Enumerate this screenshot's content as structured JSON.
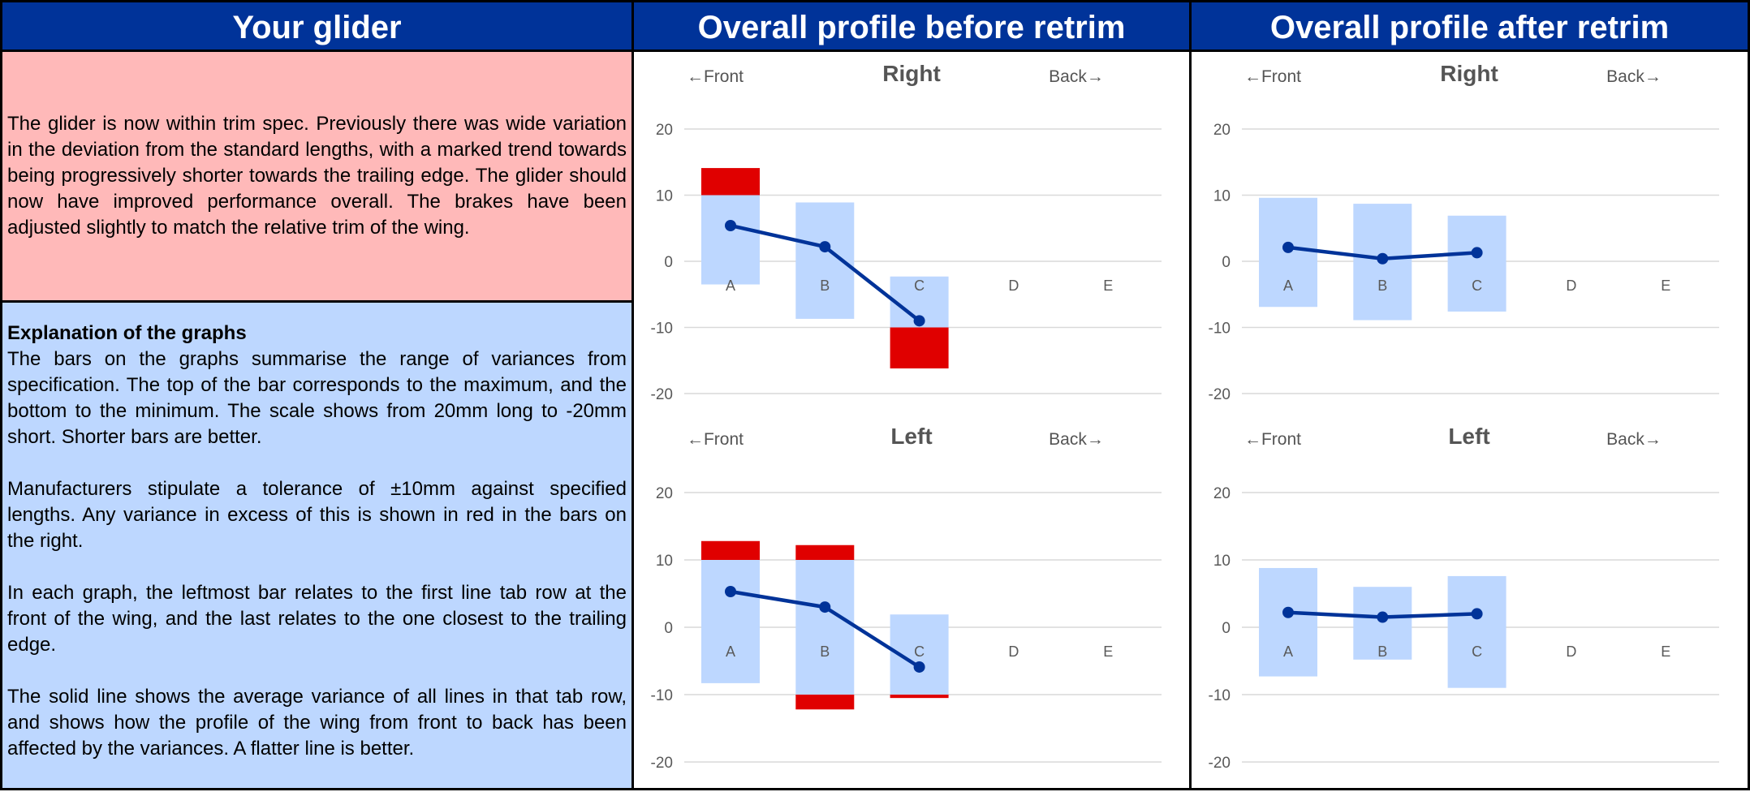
{
  "headers": {
    "glider": "Your glider",
    "before": "Overall profile before retrim",
    "after": "Overall profile after retrim"
  },
  "summary": "The glider is now within trim spec.  Previously there was wide variation in the deviation from the standard lengths, with a marked trend towards being progressively shorter towards the trailing edge.  The glider should now have improved performance overall.  The brakes have been adjusted slightly to match the relative trim of the wing.",
  "explanation": {
    "title": "Explanation of the graphs",
    "paragraphs": [
      "The bars on the graphs summarise the range of variances from specification. The top of the bar corresponds to the maximum, and the bottom to the minimum. The scale shows from 20mm long to -20mm short. Shorter bars are better.",
      "Manufacturers stipulate a tolerance of ±10mm against specified lengths. Any variance in excess of this is shown in red in the bars on the right.",
      "In each graph, the leftmost bar relates to the first line tab row at the front of the wing, and the last relates to the one closest to the trailing edge.",
      "The solid line shows the average variance of all lines in that tab row, and shows how the profile of the wing from front to back has been affected by the variances. A flatter line is better."
    ]
  },
  "colors": {
    "header_bg": "#003399",
    "bar_in_tolerance": "#bdd7ff",
    "bar_out_of_tolerance": "#e00000",
    "average_line": "#003399",
    "summary_bg": "#ffb9b9",
    "explanation_bg": "#bdd7ff"
  },
  "chart_data": [
    {
      "id": "before-right",
      "type": "bar",
      "title": "Right",
      "front_label": "←Front",
      "back_label": "Back→",
      "categories": [
        "A",
        "B",
        "C",
        "D",
        "E"
      ],
      "ylim": [
        -20,
        20
      ],
      "yticks": [
        20,
        10,
        0,
        -10,
        -20
      ],
      "tolerance": 10,
      "series": [
        {
          "type": "range-bar",
          "min": [
            -3.5,
            -8.7,
            -16.2,
            null,
            null
          ],
          "max": [
            14.1,
            8.9,
            -2.3,
            null,
            null
          ]
        },
        {
          "type": "line",
          "values": [
            5.4,
            2.2,
            -9.0,
            null,
            null
          ]
        }
      ]
    },
    {
      "id": "before-left",
      "type": "bar",
      "title": "Left",
      "front_label": "←Front",
      "back_label": "Back→",
      "categories": [
        "A",
        "B",
        "C",
        "D",
        "E"
      ],
      "ylim": [
        -20,
        20
      ],
      "yticks": [
        20,
        10,
        0,
        -10,
        -20
      ],
      "tolerance": 10,
      "series": [
        {
          "type": "range-bar",
          "min": [
            -8.3,
            -12.2,
            -10.5,
            null,
            null
          ],
          "max": [
            12.8,
            12.2,
            1.9,
            null,
            null
          ]
        },
        {
          "type": "line",
          "values": [
            5.3,
            3.0,
            -5.9,
            null,
            null
          ]
        }
      ]
    },
    {
      "id": "after-right",
      "type": "bar",
      "title": "Right",
      "front_label": "←Front",
      "back_label": "Back→",
      "categories": [
        "A",
        "B",
        "C",
        "D",
        "E"
      ],
      "ylim": [
        -20,
        20
      ],
      "yticks": [
        20,
        10,
        0,
        -10,
        -20
      ],
      "tolerance": 10,
      "series": [
        {
          "type": "range-bar",
          "min": [
            -6.9,
            -8.9,
            -7.6,
            null,
            null
          ],
          "max": [
            9.6,
            8.7,
            6.9,
            null,
            null
          ]
        },
        {
          "type": "line",
          "values": [
            2.1,
            0.4,
            1.3,
            null,
            null
          ]
        }
      ]
    },
    {
      "id": "after-left",
      "type": "bar",
      "title": "Left",
      "front_label": "←Front",
      "back_label": "Back→",
      "categories": [
        "A",
        "B",
        "C",
        "D",
        "E"
      ],
      "ylim": [
        -20,
        20
      ],
      "yticks": [
        20,
        10,
        0,
        -10,
        -20
      ],
      "tolerance": 10,
      "series": [
        {
          "type": "range-bar",
          "min": [
            -7.3,
            -4.8,
            -9.0,
            null,
            null
          ],
          "max": [
            8.8,
            6.0,
            7.6,
            null,
            null
          ]
        },
        {
          "type": "line",
          "values": [
            2.2,
            1.5,
            2.0,
            null,
            null
          ]
        }
      ]
    }
  ]
}
